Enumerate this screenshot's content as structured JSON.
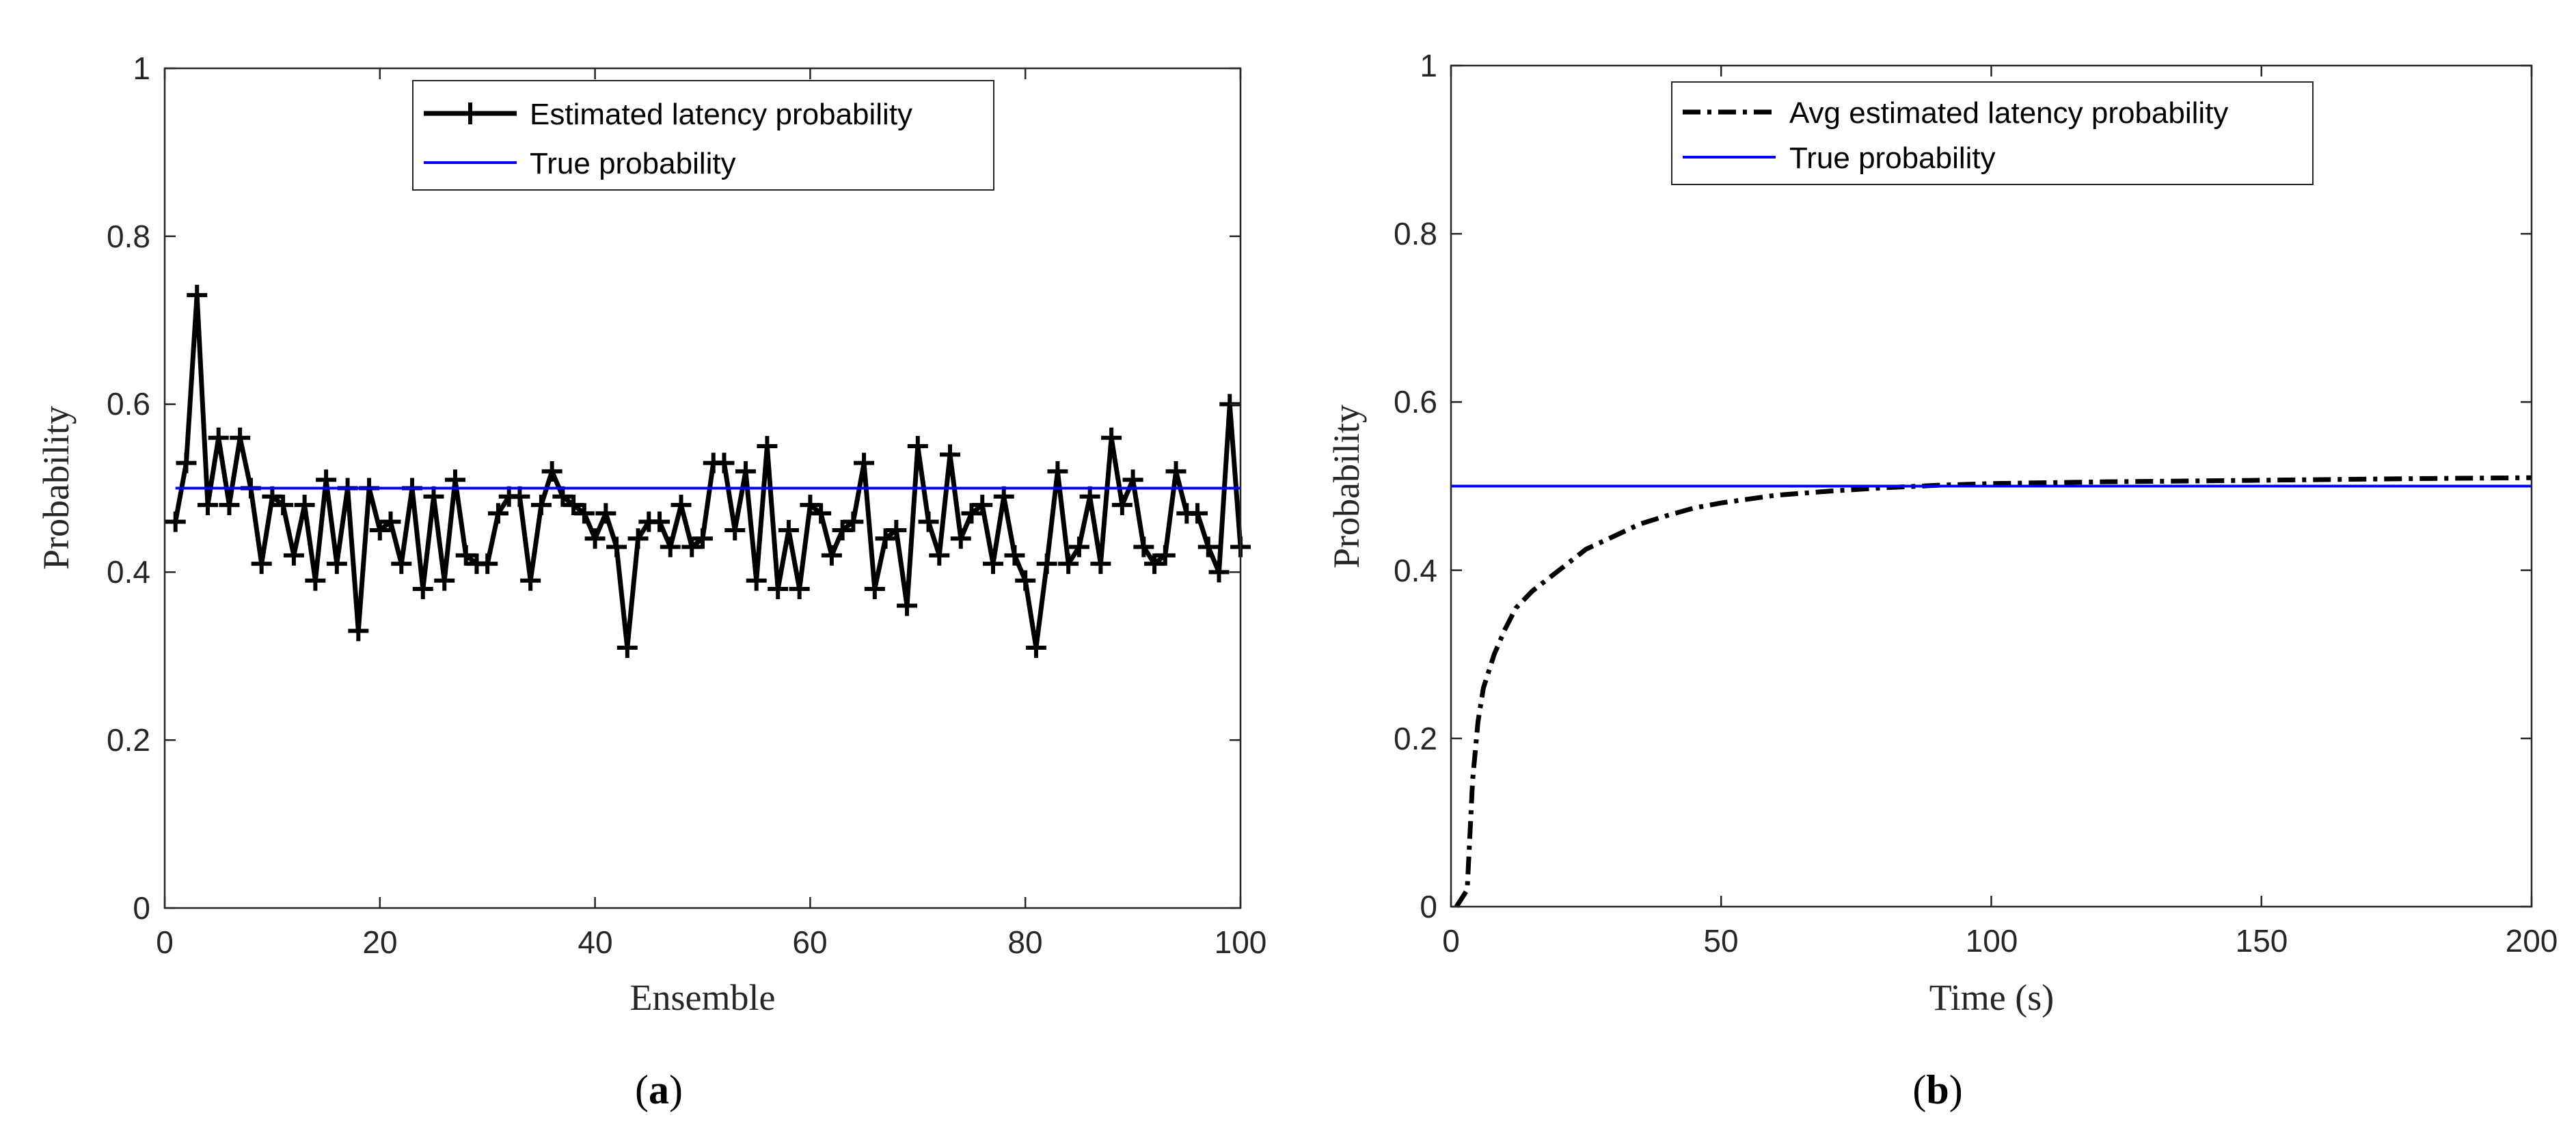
{
  "chart_data": [
    {
      "type": "line",
      "caption": "a",
      "xlabel": "Ensemble",
      "ylabel": "Probability",
      "xlim": [
        0,
        100
      ],
      "ylim": [
        0,
        1
      ],
      "xticks": [
        "0",
        "20",
        "40",
        "60",
        "80",
        "100"
      ],
      "yticks": [
        "0",
        "0.2",
        "0.4",
        "0.6",
        "0.8",
        "1"
      ],
      "grid": false,
      "legend_position": "top-center",
      "series": [
        {
          "name": "Estimated latency probability",
          "color": "#000000",
          "style": "solid-with-plus-markers",
          "x": [
            1,
            2,
            3,
            4,
            5,
            6,
            7,
            8,
            9,
            10,
            11,
            12,
            13,
            14,
            15,
            16,
            17,
            18,
            19,
            20,
            21,
            22,
            23,
            24,
            25,
            26,
            27,
            28,
            29,
            30,
            31,
            32,
            33,
            34,
            35,
            36,
            37,
            38,
            39,
            40,
            41,
            42,
            43,
            44,
            45,
            46,
            47,
            48,
            49,
            50,
            51,
            52,
            53,
            54,
            55,
            56,
            57,
            58,
            59,
            60,
            61,
            62,
            63,
            64,
            65,
            66,
            67,
            68,
            69,
            70,
            71,
            72,
            73,
            74,
            75,
            76,
            77,
            78,
            79,
            80,
            81,
            82,
            83,
            84,
            85,
            86,
            87,
            88,
            89,
            90,
            91,
            92,
            93,
            94,
            95,
            96,
            97,
            98,
            99,
            100
          ],
          "values": [
            0.46,
            0.53,
            0.73,
            0.48,
            0.56,
            0.48,
            0.56,
            0.5,
            0.41,
            0.49,
            0.48,
            0.42,
            0.48,
            0.39,
            0.51,
            0.41,
            0.5,
            0.33,
            0.5,
            0.45,
            0.46,
            0.41,
            0.5,
            0.38,
            0.49,
            0.39,
            0.51,
            0.42,
            0.41,
            0.41,
            0.47,
            0.49,
            0.49,
            0.39,
            0.48,
            0.52,
            0.49,
            0.48,
            0.47,
            0.44,
            0.47,
            0.43,
            0.31,
            0.44,
            0.46,
            0.46,
            0.43,
            0.48,
            0.43,
            0.44,
            0.53,
            0.53,
            0.45,
            0.52,
            0.39,
            0.55,
            0.38,
            0.45,
            0.38,
            0.48,
            0.47,
            0.42,
            0.45,
            0.46,
            0.53,
            0.38,
            0.44,
            0.45,
            0.36,
            0.55,
            0.46,
            0.42,
            0.54,
            0.44,
            0.47,
            0.48,
            0.41,
            0.49,
            0.42,
            0.39,
            0.31,
            0.41,
            0.52,
            0.41,
            0.43,
            0.49,
            0.41,
            0.56,
            0.48,
            0.51,
            0.43,
            0.41,
            0.42,
            0.52,
            0.47,
            0.47,
            0.43,
            0.4,
            0.6,
            0.43
          ]
        },
        {
          "name": "True probability",
          "color": "#0000ff",
          "style": "solid",
          "x": [
            1,
            100
          ],
          "values": [
            0.5,
            0.5
          ]
        }
      ]
    },
    {
      "type": "line",
      "caption": "b",
      "xlabel": "Time (s)",
      "ylabel": "Probability",
      "xlim": [
        0,
        200
      ],
      "ylim": [
        0,
        1
      ],
      "xticks": [
        "0",
        "50",
        "100",
        "150",
        "200"
      ],
      "yticks": [
        "0",
        "0.2",
        "0.4",
        "0.6",
        "0.8",
        "1"
      ],
      "grid": false,
      "legend_position": "top-center",
      "series": [
        {
          "name": "Avg estimated latency probability",
          "color": "#000000",
          "style": "dash-dot",
          "x": [
            1,
            2,
            3,
            4,
            5,
            6,
            8,
            10,
            12,
            15,
            18,
            20,
            25,
            30,
            35,
            40,
            45,
            50,
            60,
            70,
            80,
            90,
            100,
            120,
            150,
            180,
            200
          ],
          "values": [
            0.0,
            0.01,
            0.02,
            0.15,
            0.22,
            0.26,
            0.3,
            0.33,
            0.355,
            0.375,
            0.39,
            0.4,
            0.425,
            0.44,
            0.455,
            0.465,
            0.474,
            0.48,
            0.489,
            0.494,
            0.498,
            0.501,
            0.503,
            0.505,
            0.507,
            0.509,
            0.51
          ]
        },
        {
          "name": "True probability",
          "color": "#0000ff",
          "style": "solid",
          "x": [
            0,
            200
          ],
          "values": [
            0.5,
            0.5
          ]
        }
      ]
    }
  ]
}
